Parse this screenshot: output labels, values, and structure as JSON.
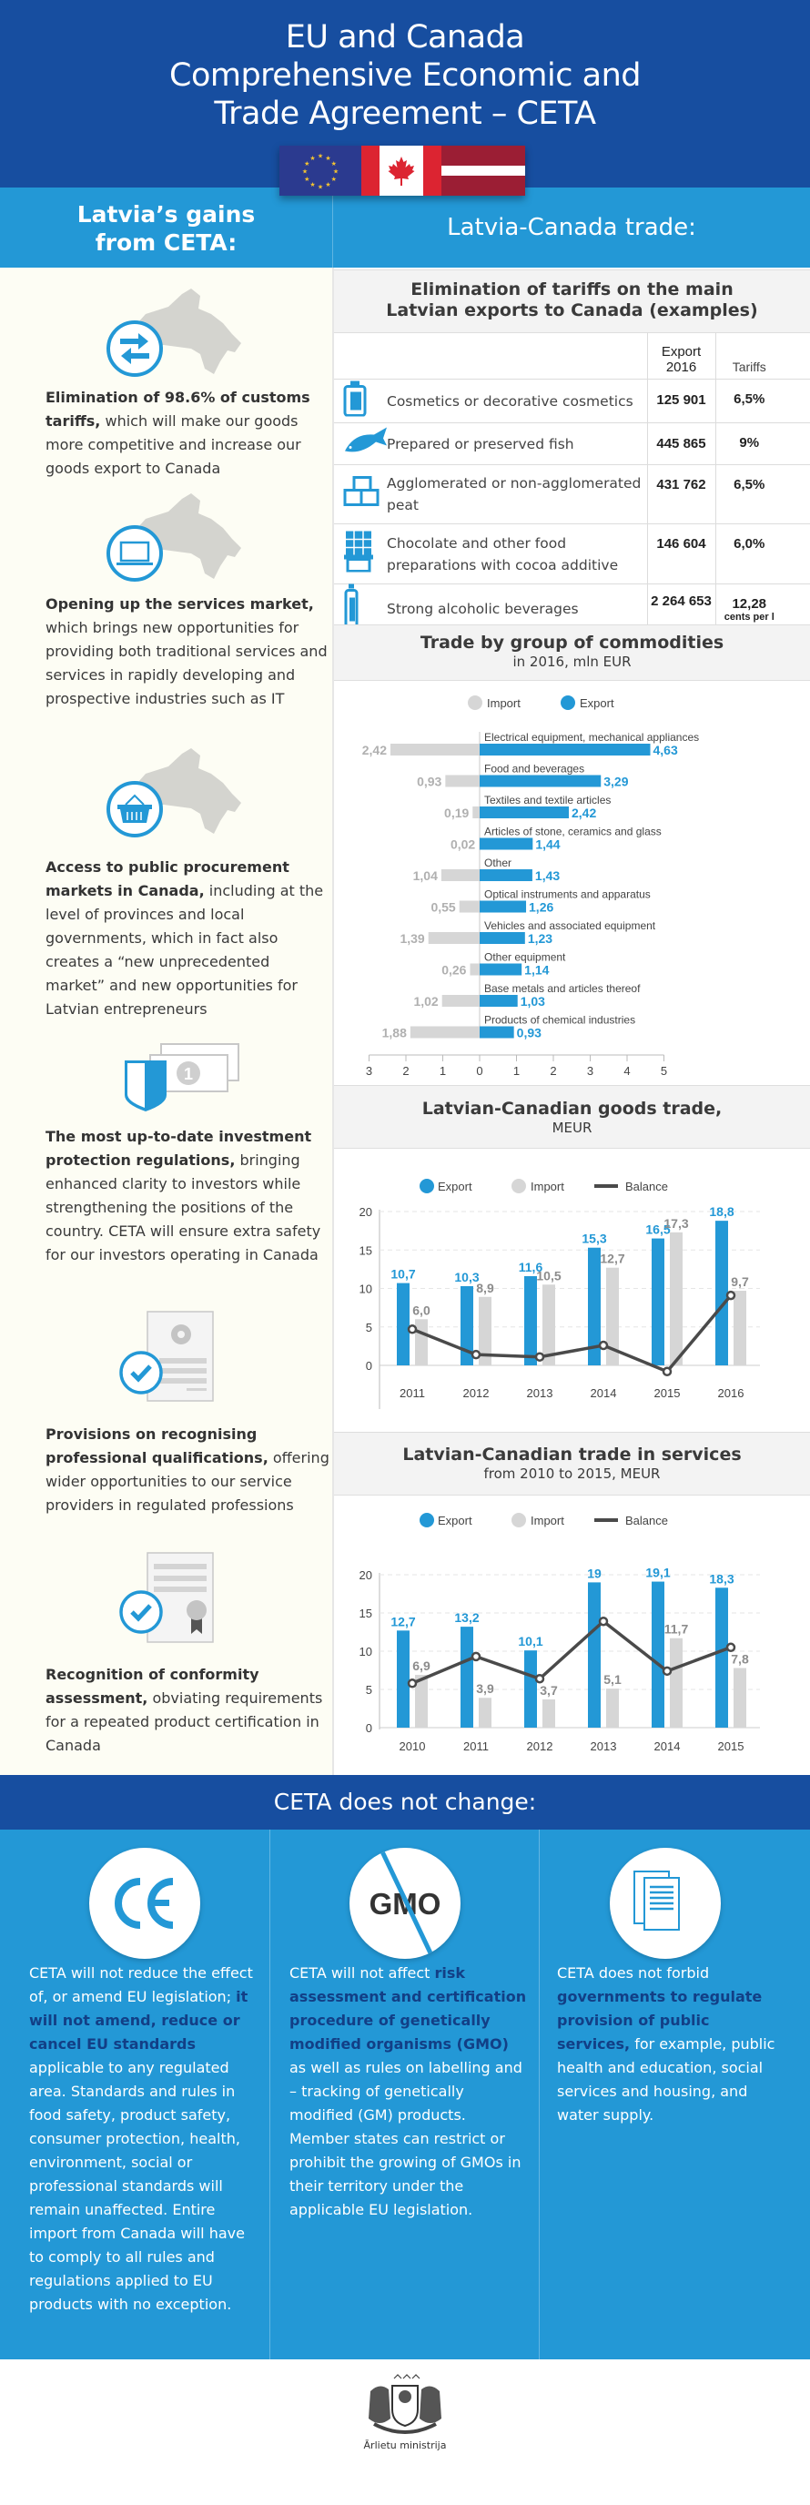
{
  "header": {
    "title_lines": [
      "EU and Canada",
      "Comprehensive Economic and",
      "Trade Agreement – CETA"
    ],
    "flags": [
      "eu-flag",
      "canada-flag",
      "latvia-flag"
    ]
  },
  "left_heading": [
    "Latvia’s gains",
    "from CETA:"
  ],
  "right_heading": "Latvia-Canada trade:",
  "gains": [
    {
      "icon": "arrows-exchange-icon",
      "bold": "Elimination of 98.6% of customs tariffs,",
      "text": " which will make our goods more competitive and increase our goods export to Canada"
    },
    {
      "icon": "laptop-icon",
      "bold": "Opening up the services market,",
      "text": " which brings new opportunities for providing both traditional services and services in rapidly developing and prospective industries such as IT"
    },
    {
      "icon": "basket-icon",
      "bold": "Access to public procurement markets in Canada,",
      "text": " including at the level of provinces and local governments, which in fact also creates a “new unprecedented market” and new opportunities for Latvian entrepreneurs"
    },
    {
      "icon": "shield-money-icon",
      "bold": "The most up-to-date investment protection regulations,",
      "text": " bringing enhanced clarity to investors while strengthening the positions of the country. CETA will ensure extra safety for our investors operating in Canada"
    },
    {
      "icon": "document-gear-check-icon",
      "bold": "Provisions on recognising professional qualifications,",
      "text": " offering wider opportunities to our service providers in regulated professions"
    },
    {
      "icon": "certificate-check-icon",
      "bold": "Recognition of conformity assessment,",
      "text": " obviating requirements for a repeated product certification in Canada"
    }
  ],
  "tariffs": {
    "title": "Elimination of tariffs on the main",
    "title2": "Latvian exports to Canada (examples)",
    "col_export": [
      "Export",
      "2016"
    ],
    "col_tariffs": "Tariffs",
    "rows": [
      {
        "icon": "cosmetics-bottle-icon",
        "name": "Cosmetics or decorative cosmetics",
        "export": "125 901",
        "tariff": "6,5%",
        "tariff_note": ""
      },
      {
        "icon": "fish-icon",
        "name": "Prepared or preserved fish",
        "export": "445 865",
        "tariff": "9%",
        "tariff_note": ""
      },
      {
        "icon": "peat-blocks-icon",
        "name": "Agglomerated or non-agglomerated peat",
        "export": "431 762",
        "tariff": "6,5%",
        "tariff_note": ""
      },
      {
        "icon": "chocolate-icon",
        "name": "Chocolate and other food preparations with cocoa additive",
        "export": "146 604",
        "tariff": "6,0%",
        "tariff_note": ""
      },
      {
        "icon": "liquor-bottle-icon",
        "name": "Strong alcoholic beverages",
        "export": "2 264 653",
        "tariff": "12,28",
        "tariff_note": "cents per l"
      }
    ]
  },
  "commodities": {
    "title": "Trade by group of commodities",
    "subtitle": "in 2016, mln EUR",
    "legend": {
      "import": "Import",
      "export": "Export"
    }
  },
  "goods": {
    "title": "Latvian-Canadian goods trade,",
    "subtitle": "MEUR",
    "legend": {
      "export": "Export",
      "import": "Import",
      "balance": "Balance"
    }
  },
  "services": {
    "title": "Latvian-Canadian trade in services",
    "subtitle": "from 2010 to 2015, MEUR",
    "legend": {
      "export": "Export",
      "import": "Import",
      "balance": "Balance"
    }
  },
  "chart_data": [
    {
      "type": "bar",
      "orientation": "horizontal-diverging",
      "title": "Trade by group of commodities",
      "subtitle": "in 2016, mln EUR",
      "categories": [
        "Electrical equipment, mechanical appliances",
        "Food and beverages",
        "Textiles and textile articles",
        "Articles of stone, ceramics and glass",
        "Other",
        "Optical instruments and apparatus",
        "Vehicles and associated equipment",
        "Other equipment",
        "Base metals and articles thereof",
        "Products of chemical industries"
      ],
      "series": [
        {
          "name": "Import",
          "values": [
            2.42,
            0.93,
            0.19,
            0.02,
            1.04,
            0.55,
            1.39,
            0.26,
            1.02,
            1.88
          ],
          "labels": [
            "2,42",
            "0,93",
            "0,19",
            "0,02",
            "1,04",
            "0,55",
            "1,39",
            "0,26",
            "1,02",
            "1,88"
          ],
          "color": "#d6d6d6"
        },
        {
          "name": "Export",
          "values": [
            4.63,
            3.29,
            2.42,
            1.44,
            1.43,
            1.26,
            1.23,
            1.14,
            1.03,
            0.93
          ],
          "labels": [
            "4,63",
            "3,29",
            "2,42",
            "1,44",
            "1,43",
            "1,26",
            "1,23",
            "1,14",
            "1,03",
            "0,93"
          ],
          "color": "#2398d6"
        }
      ],
      "xticks": [
        "3",
        "2",
        "1",
        "0",
        "1",
        "2",
        "3",
        "4",
        "5"
      ],
      "xlim": [
        -3,
        5
      ],
      "legend": "top-center"
    },
    {
      "type": "bar",
      "title": "Latvian-Canadian goods trade,",
      "subtitle": "MEUR",
      "categories": [
        "2011",
        "2012",
        "2013",
        "2014",
        "2015",
        "2016"
      ],
      "series": [
        {
          "name": "Export",
          "values": [
            10.7,
            10.3,
            11.6,
            15.3,
            16.5,
            18.8
          ],
          "labels": [
            "10,7",
            "10,3",
            "11,6",
            "15,3",
            "16,5",
            "18,8"
          ],
          "color": "#2398d6"
        },
        {
          "name": "Import",
          "values": [
            6.0,
            8.9,
            10.5,
            12.7,
            17.3,
            9.7
          ],
          "labels": [
            "6,0",
            "8,9",
            "10,5",
            "12,7",
            "17,3",
            "9,7"
          ],
          "color": "#d6d6d6"
        },
        {
          "name": "Balance",
          "type": "line",
          "values": [
            4.7,
            1.4,
            1.1,
            2.6,
            -0.8,
            9.1
          ],
          "color": "#4a4a4a"
        }
      ],
      "yticks": [
        "0",
        "5",
        "10",
        "15",
        "20"
      ],
      "ylim": [
        -3,
        20
      ],
      "grid": true,
      "legend": "top-center"
    },
    {
      "type": "bar",
      "title": "Latvian-Canadian trade in services",
      "subtitle": "from 2010 to 2015, MEUR",
      "categories": [
        "2010",
        "2011",
        "2012",
        "2013",
        "2014",
        "2015"
      ],
      "series": [
        {
          "name": "Export",
          "values": [
            12.7,
            13.2,
            10.1,
            19,
            19.1,
            18.3
          ],
          "labels": [
            "12,7",
            "13,2",
            "10,1",
            "19",
            "19,1",
            "18,3"
          ],
          "color": "#2398d6"
        },
        {
          "name": "Import",
          "values": [
            6.9,
            3.9,
            3.7,
            5.1,
            11.7,
            7.8
          ],
          "labels": [
            "6,9",
            "3,9",
            "3,7",
            "5,1",
            "11,7",
            "7,8"
          ],
          "color": "#d6d6d6"
        },
        {
          "name": "Balance",
          "type": "line",
          "values": [
            5.8,
            9.3,
            6.4,
            13.9,
            7.4,
            10.5
          ],
          "color": "#4a4a4a"
        }
      ],
      "yticks": [
        "0",
        "5",
        "10",
        "15",
        "20"
      ],
      "ylim": [
        0,
        20
      ],
      "grid": true,
      "legend": "top-center"
    }
  ],
  "bottom": {
    "heading": "CETA does not change:",
    "columns": [
      {
        "icon": "ce-mark-icon",
        "parts": [
          {
            "b": false,
            "t": "CETA will not reduce the effect of, or amend EU legislation; "
          },
          {
            "b": true,
            "t": "it will not amend, reduce or cancel EU standards"
          },
          {
            "b": false,
            "t": " applicable to any regulated area. Standards and rules in food safety, product safety, consumer protection, health, environment, social or professional standards will remain unaffected. Entire import from Canada will have to comply to all rules and regulations applied to EU products with no exception."
          }
        ]
      },
      {
        "icon": "no-gmo-icon",
        "icon_text": "GMO",
        "parts": [
          {
            "b": false,
            "t": "CETA will not affect "
          },
          {
            "b": true,
            "t": "risk assessment and certification procedure of genetically modified organisms (GMO)"
          },
          {
            "b": false,
            "t": " as well as rules on labelling and – tracking of genetically modified (GM) products. Member states can restrict or prohibit the growing of GMOs in their territory under the applicable EU legislation."
          }
        ]
      },
      {
        "icon": "documents-icon",
        "parts": [
          {
            "b": false,
            "t": "CETA does not forbid "
          },
          {
            "b": true,
            "t": "governments to regulate provision of public services,"
          },
          {
            "b": false,
            "t": " for example, public health and education, social services and housing, and water supply."
          }
        ]
      }
    ]
  },
  "footer": {
    "ministry": "Ārlietu ministrija"
  },
  "colors": {
    "dark_blue": "#174ea0",
    "blue": "#2398d6",
    "grey": "#d6d6d6",
    "balance": "#4a4a4a",
    "left_bg": "#fdfdf4"
  }
}
